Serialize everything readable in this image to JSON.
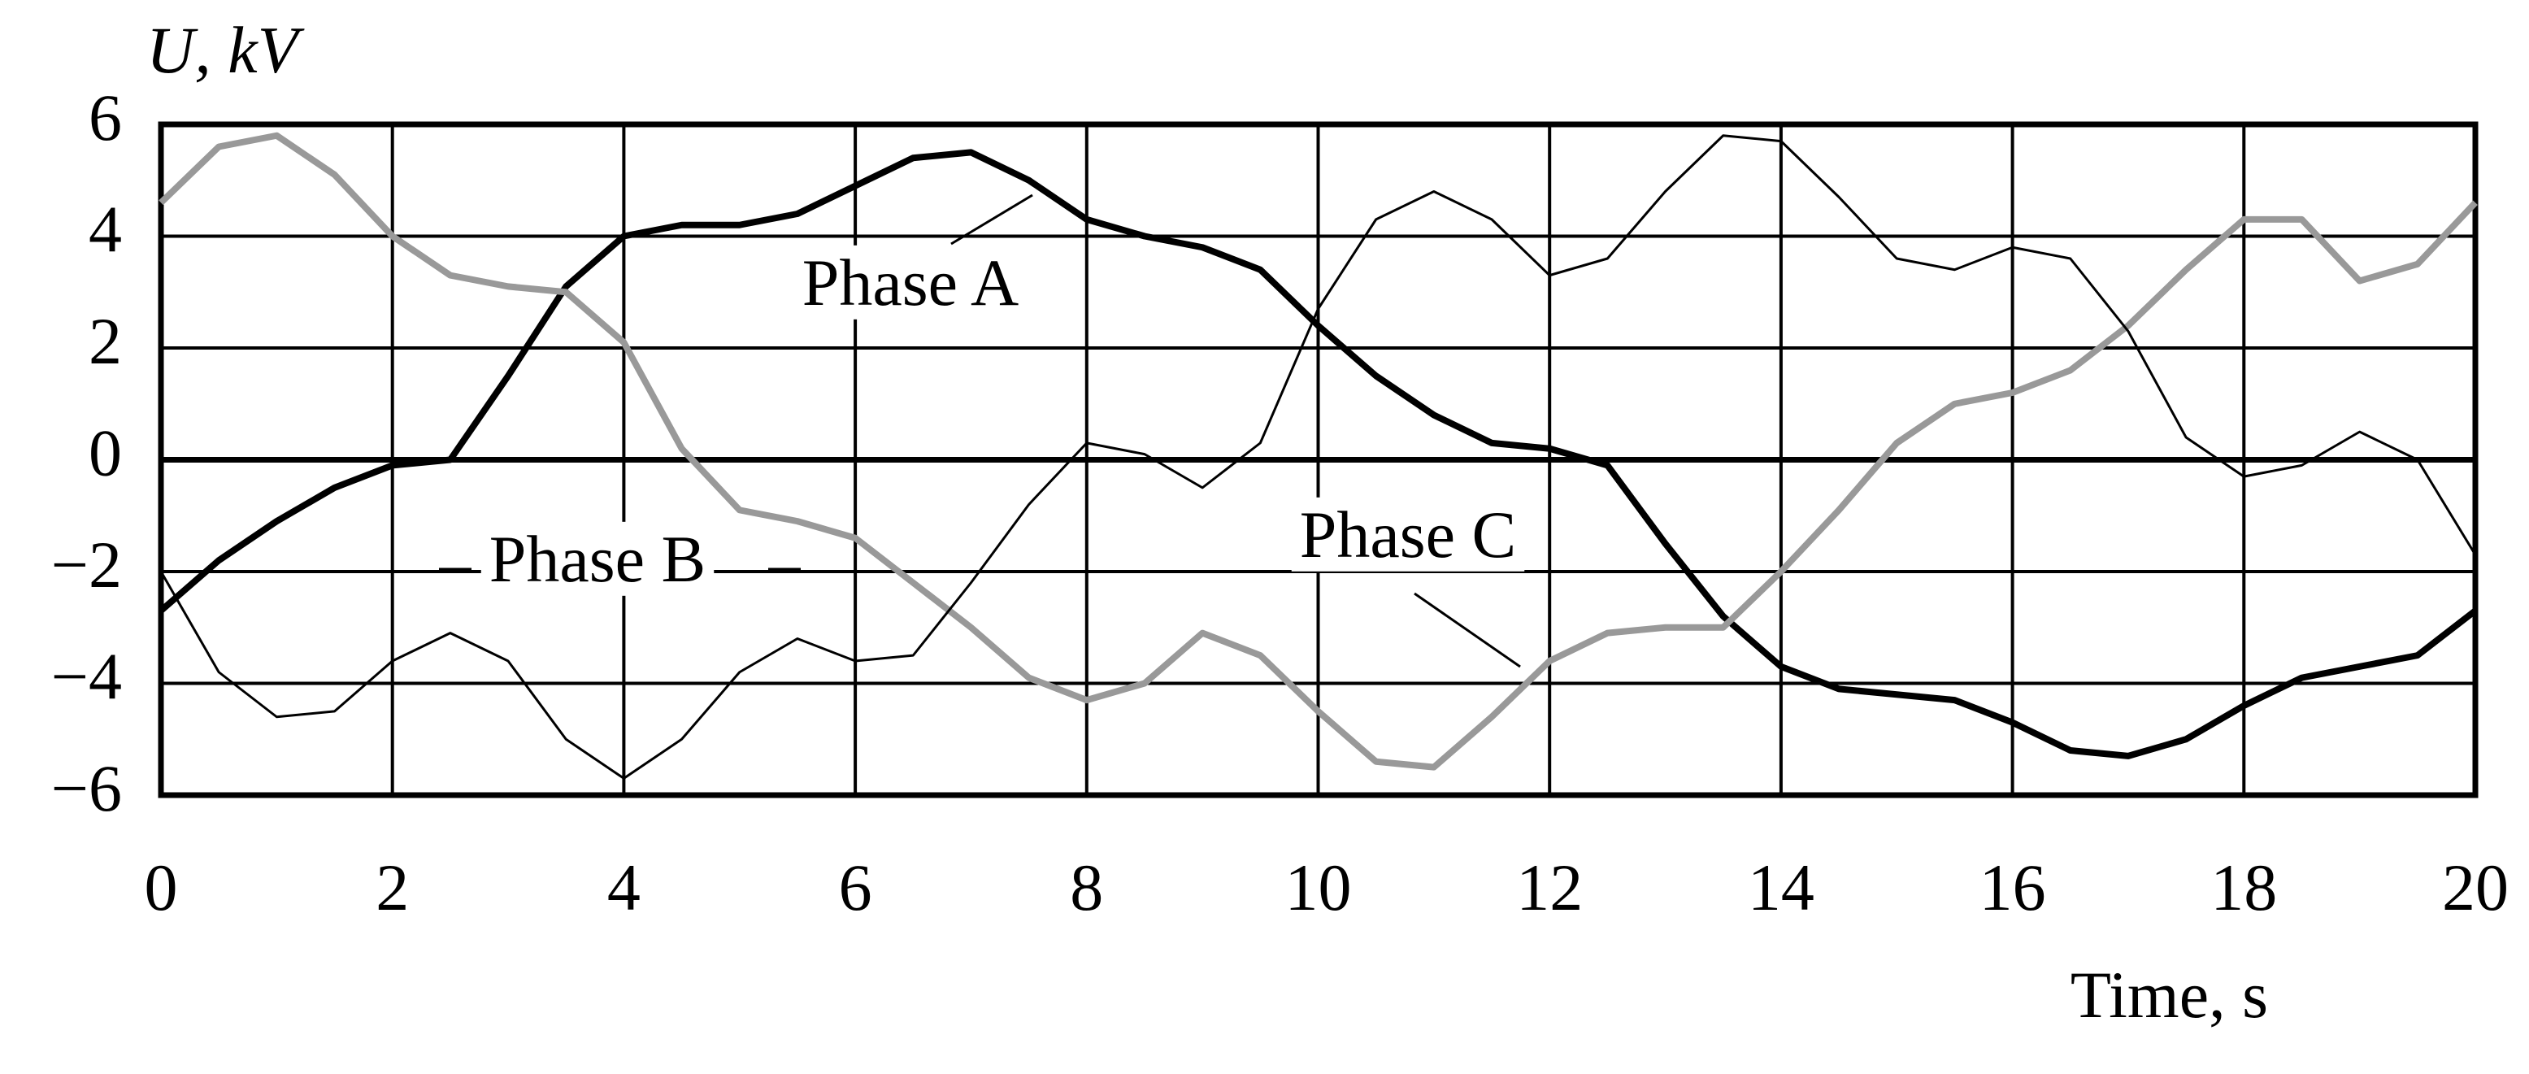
{
  "chart_data": {
    "type": "line",
    "xlabel": "Time, s",
    "ylabel": "U, kV",
    "x": [
      0,
      0.5,
      1,
      1.5,
      2,
      2.5,
      3,
      3.5,
      4,
      4.5,
      5,
      5.5,
      6,
      6.5,
      7,
      7.5,
      8,
      8.5,
      9,
      9.5,
      10,
      10.5,
      11,
      11.5,
      12,
      12.5,
      13,
      13.5,
      14,
      14.5,
      15,
      15.5,
      16,
      16.5,
      17,
      17.5,
      18,
      18.5,
      19,
      19.5,
      20
    ],
    "series": [
      {
        "name": "Phase A",
        "color": "#000000",
        "values": [
          -2.7,
          -1.8,
          -1.1,
          -0.5,
          -0.1,
          0,
          1.5,
          3.1,
          4.0,
          4.2,
          4.2,
          4.4,
          4.9,
          5.4,
          5.5,
          5.0,
          4.3,
          4.0,
          3.8,
          3.4,
          2.4,
          1.5,
          0.8,
          0.3,
          0.2,
          -0.1,
          -1.5,
          -2.8,
          -3.7,
          -4.1,
          -4.2,
          -4.3,
          -4.7,
          -5.2,
          -5.3,
          -5.0,
          -4.4,
          -3.9,
          -3.7,
          -3.5,
          -2.7
        ]
      },
      {
        "name": "Phase B",
        "color": "#999999",
        "values": [
          4.6,
          5.6,
          5.8,
          5.1,
          4.0,
          3.3,
          3.1,
          3.0,
          2.1,
          0.2,
          -0.9,
          -1.1,
          -1.4,
          -2.2,
          -3.0,
          -3.9,
          -4.3,
          -4.0,
          -3.1,
          -3.5,
          -4.5,
          -5.4,
          -5.5,
          -4.6,
          -3.6,
          -3.1,
          -3.0,
          -3.0,
          -2.0,
          -0.9,
          0.3,
          1.0,
          1.2,
          1.6,
          2.4,
          3.4,
          4.3,
          4.3,
          3.2,
          3.5,
          4.6
        ]
      },
      {
        "name": "Phase C",
        "color": "#000000",
        "values": [
          -2.0,
          -3.8,
          -4.6,
          -4.5,
          -3.6,
          -3.1,
          -3.6,
          -5.0,
          -5.7,
          -5.0,
          -3.8,
          -3.2,
          -3.6,
          -3.5,
          -2.2,
          -0.8,
          0.3,
          0.1,
          -0.5,
          0.3,
          2.7,
          4.3,
          4.8,
          4.3,
          3.3,
          3.6,
          4.8,
          5.8,
          5.7,
          4.7,
          3.6,
          3.4,
          3.8,
          3.6,
          2.3,
          0.4,
          -0.3,
          -0.1,
          0.5,
          0,
          -1.7
        ]
      }
    ],
    "xlim": [
      0,
      20
    ],
    "ylim": [
      -6,
      6
    ],
    "xticks": [
      0,
      2,
      4,
      6,
      8,
      10,
      12,
      14,
      16,
      18,
      20
    ],
    "yticks": [
      {
        "value": -6,
        "label": "−6"
      },
      {
        "value": -4,
        "label": "−4"
      },
      {
        "value": -2,
        "label": "−2"
      },
      0,
      2,
      4,
      6
    ],
    "grid": true
  }
}
